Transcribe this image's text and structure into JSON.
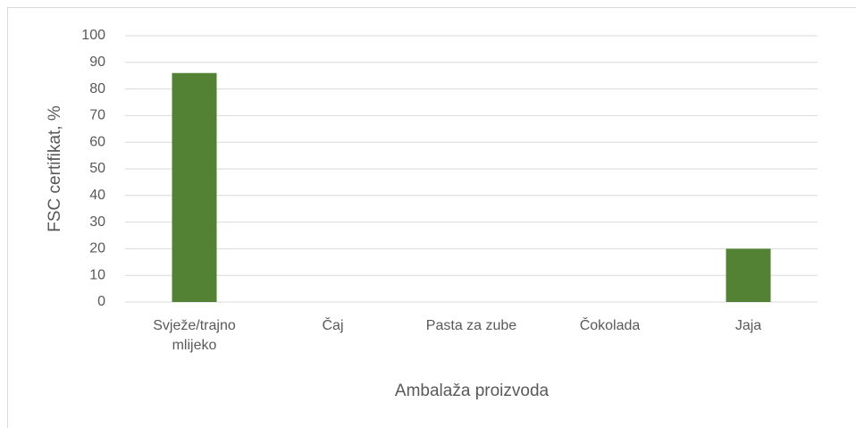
{
  "chart_data": {
    "type": "bar",
    "categories": [
      "Svježe/trajno mlijeko",
      "Čaj",
      "Pasta za zube",
      "Čokolada",
      "Jaja"
    ],
    "values": [
      86,
      0,
      0,
      0,
      20
    ],
    "color": "#548235",
    "ylim": [
      0,
      100
    ],
    "yticks": [
      0,
      10,
      20,
      30,
      40,
      50,
      60,
      70,
      80,
      90,
      100
    ],
    "grid": true,
    "xlabel": "Ambalaža proizvoda",
    "ylabel": "FSC certifikat, %"
  }
}
